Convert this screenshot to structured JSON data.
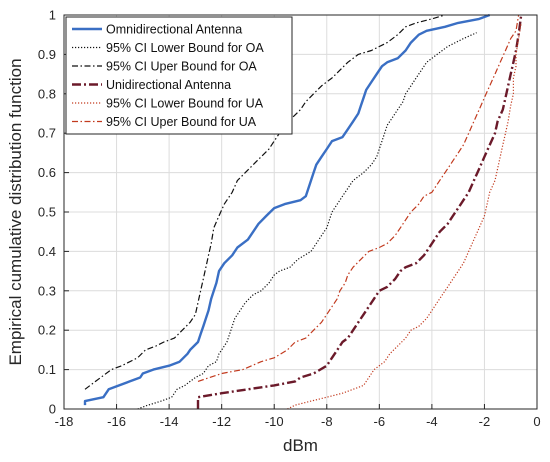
{
  "chart_data": {
    "type": "line",
    "xlabel": "dBm",
    "ylabel": "Empirical cumulative distribution function",
    "xlim": [
      -18,
      0
    ],
    "ylim": [
      0,
      1
    ],
    "xticks": [
      -18,
      -16,
      -14,
      -12,
      -10,
      -8,
      -6,
      -4,
      -2,
      0
    ],
    "yticks": [
      0,
      0.1,
      0.2,
      0.3,
      0.4,
      0.5,
      0.6,
      0.7,
      0.8,
      0.9,
      1
    ],
    "grid": true,
    "legend": "top-left",
    "series": [
      {
        "name": "Omnidirectional Antenna",
        "color": "#3a6fc4",
        "style": "solid",
        "points": [
          [
            -17.2,
            0.01
          ],
          [
            -17.2,
            0.02
          ],
          [
            -16.5,
            0.03
          ],
          [
            -16.3,
            0.05
          ],
          [
            -15.5,
            0.07
          ],
          [
            -15.1,
            0.08
          ],
          [
            -15.0,
            0.09
          ],
          [
            -14.6,
            0.1
          ],
          [
            -14.0,
            0.11
          ],
          [
            -13.6,
            0.12
          ],
          [
            -13.3,
            0.14
          ],
          [
            -13.2,
            0.15
          ],
          [
            -12.9,
            0.17
          ],
          [
            -12.8,
            0.19
          ],
          [
            -12.7,
            0.21
          ],
          [
            -12.6,
            0.23
          ],
          [
            -12.5,
            0.25
          ],
          [
            -12.4,
            0.28
          ],
          [
            -12.3,
            0.3
          ],
          [
            -12.2,
            0.32
          ],
          [
            -12.1,
            0.35
          ],
          [
            -11.9,
            0.37
          ],
          [
            -11.6,
            0.39
          ],
          [
            -11.4,
            0.41
          ],
          [
            -11.0,
            0.43
          ],
          [
            -10.8,
            0.45
          ],
          [
            -10.6,
            0.47
          ],
          [
            -10.3,
            0.49
          ],
          [
            -10.0,
            0.51
          ],
          [
            -9.6,
            0.52
          ],
          [
            -9.0,
            0.53
          ],
          [
            -8.8,
            0.54
          ],
          [
            -8.7,
            0.56
          ],
          [
            -8.6,
            0.58
          ],
          [
            -8.5,
            0.6
          ],
          [
            -8.4,
            0.62
          ],
          [
            -8.2,
            0.64
          ],
          [
            -8.0,
            0.66
          ],
          [
            -7.8,
            0.68
          ],
          [
            -7.4,
            0.69
          ],
          [
            -7.2,
            0.71
          ],
          [
            -7.0,
            0.73
          ],
          [
            -6.8,
            0.75
          ],
          [
            -6.7,
            0.77
          ],
          [
            -6.6,
            0.79
          ],
          [
            -6.5,
            0.81
          ],
          [
            -6.3,
            0.83
          ],
          [
            -6.1,
            0.85
          ],
          [
            -5.9,
            0.87
          ],
          [
            -5.7,
            0.88
          ],
          [
            -5.3,
            0.89
          ],
          [
            -5.0,
            0.91
          ],
          [
            -4.8,
            0.93
          ],
          [
            -4.5,
            0.95
          ],
          [
            -4.2,
            0.96
          ],
          [
            -3.5,
            0.97
          ],
          [
            -3.0,
            0.98
          ],
          [
            -2.2,
            0.99
          ],
          [
            -1.8,
            1.0
          ]
        ]
      },
      {
        "name": "95% CI Lower Bound for OA",
        "color": "#111111",
        "style": "dotted",
        "points": [
          [
            -15.2,
            0.0
          ],
          [
            -14.8,
            0.01
          ],
          [
            -14.3,
            0.02
          ],
          [
            -13.9,
            0.03
          ],
          [
            -13.7,
            0.05
          ],
          [
            -13.4,
            0.06
          ],
          [
            -13.2,
            0.07
          ],
          [
            -13.0,
            0.08
          ],
          [
            -12.7,
            0.09
          ],
          [
            -12.5,
            0.11
          ],
          [
            -12.2,
            0.12
          ],
          [
            -12.1,
            0.14
          ],
          [
            -12.0,
            0.15
          ],
          [
            -11.8,
            0.17
          ],
          [
            -11.7,
            0.19
          ],
          [
            -11.6,
            0.21
          ],
          [
            -11.5,
            0.23
          ],
          [
            -11.3,
            0.25
          ],
          [
            -11.1,
            0.27
          ],
          [
            -10.8,
            0.29
          ],
          [
            -10.5,
            0.3
          ],
          [
            -10.2,
            0.32
          ],
          [
            -10.0,
            0.34
          ],
          [
            -9.8,
            0.35
          ],
          [
            -9.4,
            0.36
          ],
          [
            -9.1,
            0.38
          ],
          [
            -8.6,
            0.4
          ],
          [
            -8.4,
            0.42
          ],
          [
            -8.2,
            0.44
          ],
          [
            -8.0,
            0.46
          ],
          [
            -7.9,
            0.48
          ],
          [
            -7.8,
            0.5
          ],
          [
            -7.6,
            0.52
          ],
          [
            -7.4,
            0.54
          ],
          [
            -7.2,
            0.56
          ],
          [
            -7.0,
            0.58
          ],
          [
            -6.6,
            0.6
          ],
          [
            -6.3,
            0.62
          ],
          [
            -6.1,
            0.64
          ],
          [
            -6.0,
            0.66
          ],
          [
            -5.9,
            0.68
          ],
          [
            -5.8,
            0.7
          ],
          [
            -5.7,
            0.72
          ],
          [
            -5.5,
            0.74
          ],
          [
            -5.3,
            0.76
          ],
          [
            -5.1,
            0.78
          ],
          [
            -5.0,
            0.8
          ],
          [
            -4.8,
            0.82
          ],
          [
            -4.6,
            0.84
          ],
          [
            -4.4,
            0.86
          ],
          [
            -4.2,
            0.88
          ],
          [
            -3.8,
            0.9
          ],
          [
            -3.4,
            0.92
          ],
          [
            -2.8,
            0.94
          ],
          [
            -2.3,
            0.955
          ]
        ]
      },
      {
        "name": "95% CI Uper Bound for OA",
        "color": "#111111",
        "style": "dashdot",
        "points": [
          [
            -17.2,
            0.05
          ],
          [
            -16.8,
            0.07
          ],
          [
            -16.2,
            0.1
          ],
          [
            -15.8,
            0.11
          ],
          [
            -15.2,
            0.13
          ],
          [
            -14.9,
            0.15
          ],
          [
            -14.5,
            0.16
          ],
          [
            -14.2,
            0.17
          ],
          [
            -13.8,
            0.18
          ],
          [
            -13.5,
            0.2
          ],
          [
            -13.2,
            0.22
          ],
          [
            -13.0,
            0.24
          ],
          [
            -12.9,
            0.27
          ],
          [
            -12.8,
            0.3
          ],
          [
            -12.7,
            0.33
          ],
          [
            -12.6,
            0.36
          ],
          [
            -12.5,
            0.39
          ],
          [
            -12.4,
            0.42
          ],
          [
            -12.3,
            0.46
          ],
          [
            -12.1,
            0.49
          ],
          [
            -11.9,
            0.52
          ],
          [
            -11.6,
            0.55
          ],
          [
            -11.4,
            0.58
          ],
          [
            -11.1,
            0.6
          ],
          [
            -10.8,
            0.62
          ],
          [
            -10.5,
            0.64
          ],
          [
            -10.2,
            0.66
          ],
          [
            -10.0,
            0.68
          ],
          [
            -9.8,
            0.7
          ],
          [
            -9.5,
            0.72
          ],
          [
            -9.3,
            0.74
          ],
          [
            -9.0,
            0.76
          ],
          [
            -8.8,
            0.78
          ],
          [
            -8.5,
            0.8
          ],
          [
            -8.2,
            0.82
          ],
          [
            -7.8,
            0.84
          ],
          [
            -7.5,
            0.86
          ],
          [
            -7.2,
            0.88
          ],
          [
            -6.8,
            0.9
          ],
          [
            -6.3,
            0.91
          ],
          [
            -6.0,
            0.92
          ],
          [
            -5.7,
            0.93
          ],
          [
            -5.3,
            0.95
          ],
          [
            -5.0,
            0.97
          ],
          [
            -4.6,
            0.98
          ],
          [
            -4.0,
            0.99
          ],
          [
            -3.5,
            1.0
          ]
        ]
      },
      {
        "name": "Unidirectional Antenna",
        "color": "#6b1a2a",
        "style": "dashdot",
        "points": [
          [
            -12.9,
            0.0
          ],
          [
            -12.9,
            0.03
          ],
          [
            -12.0,
            0.04
          ],
          [
            -11.0,
            0.05
          ],
          [
            -10.0,
            0.06
          ],
          [
            -9.2,
            0.07
          ],
          [
            -9.0,
            0.08
          ],
          [
            -8.5,
            0.09
          ],
          [
            -8.0,
            0.11
          ],
          [
            -7.8,
            0.13
          ],
          [
            -7.6,
            0.15
          ],
          [
            -7.4,
            0.17
          ],
          [
            -7.2,
            0.18
          ],
          [
            -7.0,
            0.2
          ],
          [
            -6.8,
            0.22
          ],
          [
            -6.6,
            0.24
          ],
          [
            -6.4,
            0.26
          ],
          [
            -6.2,
            0.28
          ],
          [
            -6.0,
            0.3
          ],
          [
            -5.7,
            0.31
          ],
          [
            -5.4,
            0.33
          ],
          [
            -5.2,
            0.35
          ],
          [
            -5.0,
            0.36
          ],
          [
            -4.6,
            0.37
          ],
          [
            -4.3,
            0.39
          ],
          [
            -4.1,
            0.41
          ],
          [
            -3.9,
            0.43
          ],
          [
            -3.7,
            0.45
          ],
          [
            -3.4,
            0.47
          ],
          [
            -3.2,
            0.49
          ],
          [
            -3.0,
            0.51
          ],
          [
            -2.8,
            0.53
          ],
          [
            -2.6,
            0.55
          ],
          [
            -2.4,
            0.58
          ],
          [
            -2.2,
            0.61
          ],
          [
            -2.0,
            0.64
          ],
          [
            -1.8,
            0.67
          ],
          [
            -1.6,
            0.7
          ],
          [
            -1.5,
            0.73
          ],
          [
            -1.3,
            0.76
          ],
          [
            -1.2,
            0.79
          ],
          [
            -1.1,
            0.82
          ],
          [
            -1.0,
            0.85
          ],
          [
            -0.9,
            0.88
          ],
          [
            -0.8,
            0.91
          ],
          [
            -0.7,
            0.95
          ],
          [
            -0.6,
            1.0
          ]
        ]
      },
      {
        "name": "95% CI Lower Bound for UA",
        "color": "#c23a1e",
        "style": "dotted",
        "points": [
          [
            -9.5,
            0.0
          ],
          [
            -9.2,
            0.01
          ],
          [
            -8.6,
            0.02
          ],
          [
            -8.0,
            0.03
          ],
          [
            -7.4,
            0.04
          ],
          [
            -7.0,
            0.05
          ],
          [
            -6.6,
            0.06
          ],
          [
            -6.4,
            0.08
          ],
          [
            -6.2,
            0.1
          ],
          [
            -5.8,
            0.12
          ],
          [
            -5.6,
            0.14
          ],
          [
            -5.3,
            0.16
          ],
          [
            -5.0,
            0.18
          ],
          [
            -4.8,
            0.2
          ],
          [
            -4.5,
            0.21
          ],
          [
            -4.2,
            0.23
          ],
          [
            -4.0,
            0.25
          ],
          [
            -3.8,
            0.27
          ],
          [
            -3.6,
            0.29
          ],
          [
            -3.4,
            0.31
          ],
          [
            -3.2,
            0.33
          ],
          [
            -3.0,
            0.35
          ],
          [
            -2.8,
            0.37
          ],
          [
            -2.6,
            0.4
          ],
          [
            -2.4,
            0.43
          ],
          [
            -2.2,
            0.46
          ],
          [
            -2.0,
            0.49
          ],
          [
            -1.9,
            0.52
          ],
          [
            -1.8,
            0.55
          ],
          [
            -1.6,
            0.58
          ],
          [
            -1.5,
            0.61
          ],
          [
            -1.4,
            0.64
          ],
          [
            -1.3,
            0.67
          ],
          [
            -1.2,
            0.7
          ],
          [
            -1.1,
            0.73
          ],
          [
            -1.0,
            0.77
          ],
          [
            -0.9,
            0.8
          ],
          [
            -0.9,
            0.84
          ],
          [
            -0.8,
            0.87
          ],
          [
            -0.8,
            0.9
          ],
          [
            -0.7,
            0.94
          ],
          [
            -0.6,
            0.98
          ]
        ]
      },
      {
        "name": "95% CI Uper Bound for UA",
        "color": "#c23a1e",
        "style": "dashdot",
        "points": [
          [
            -12.9,
            0.07
          ],
          [
            -12.0,
            0.09
          ],
          [
            -11.2,
            0.1
          ],
          [
            -10.5,
            0.12
          ],
          [
            -10.0,
            0.13
          ],
          [
            -9.5,
            0.15
          ],
          [
            -9.2,
            0.17
          ],
          [
            -8.8,
            0.18
          ],
          [
            -8.5,
            0.2
          ],
          [
            -8.2,
            0.22
          ],
          [
            -8.0,
            0.24
          ],
          [
            -7.8,
            0.26
          ],
          [
            -7.6,
            0.28
          ],
          [
            -7.5,
            0.3
          ],
          [
            -7.3,
            0.32
          ],
          [
            -7.2,
            0.34
          ],
          [
            -7.0,
            0.36
          ],
          [
            -6.7,
            0.38
          ],
          [
            -6.4,
            0.4
          ],
          [
            -6.0,
            0.41
          ],
          [
            -5.7,
            0.42
          ],
          [
            -5.4,
            0.44
          ],
          [
            -5.2,
            0.46
          ],
          [
            -5.0,
            0.48
          ],
          [
            -4.8,
            0.5
          ],
          [
            -4.5,
            0.52
          ],
          [
            -4.3,
            0.54
          ],
          [
            -4.0,
            0.55
          ],
          [
            -3.8,
            0.57
          ],
          [
            -3.6,
            0.59
          ],
          [
            -3.4,
            0.61
          ],
          [
            -3.2,
            0.63
          ],
          [
            -3.0,
            0.65
          ],
          [
            -2.8,
            0.67
          ],
          [
            -2.6,
            0.7
          ],
          [
            -2.4,
            0.73
          ],
          [
            -2.2,
            0.76
          ],
          [
            -2.0,
            0.79
          ],
          [
            -1.8,
            0.82
          ],
          [
            -1.6,
            0.85
          ],
          [
            -1.4,
            0.88
          ],
          [
            -1.2,
            0.91
          ],
          [
            -1.0,
            0.94
          ],
          [
            -0.8,
            0.96
          ],
          [
            -0.7,
            1.0
          ]
        ]
      }
    ]
  }
}
